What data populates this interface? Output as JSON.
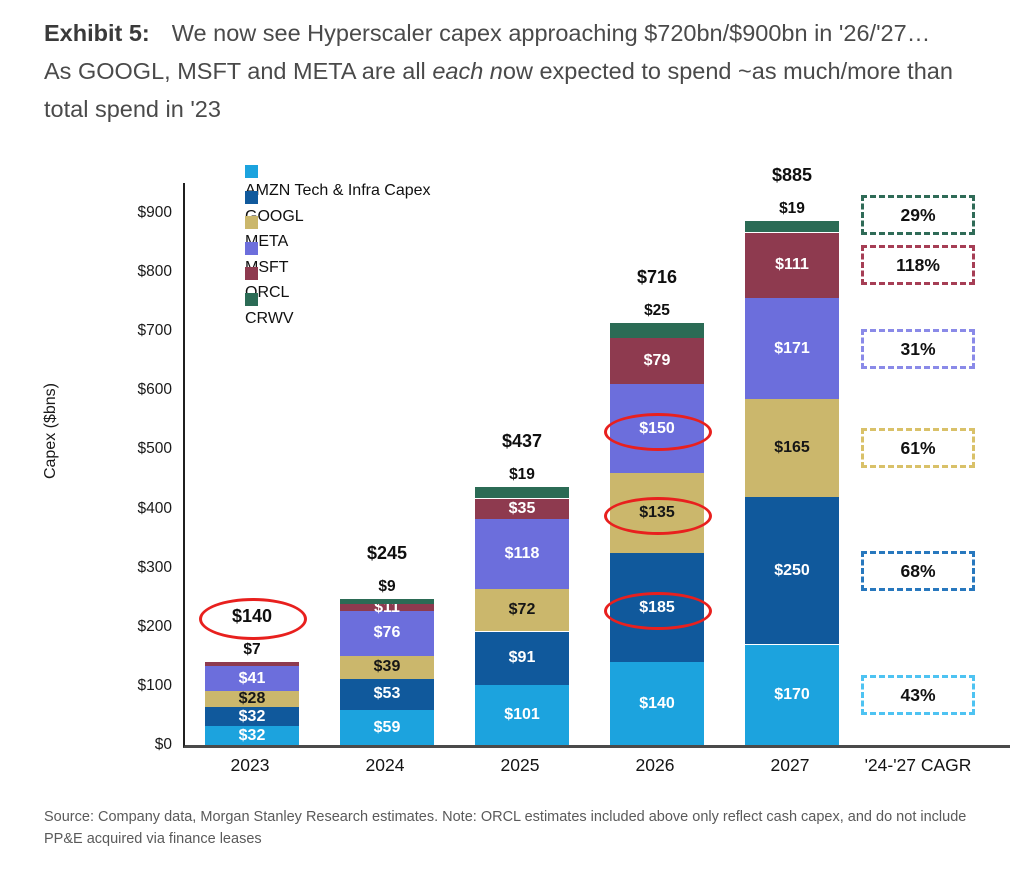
{
  "page": {
    "title": {
      "exhibit_label": "Exhibit 5:",
      "text_before_italic": "We now see Hyperscaler capex approaching $720bn/$900bn in '26/'27… As GOOGL, MSFT and META are all ",
      "italic_text": "each n",
      "text_after_italic": "ow expected to spend ~as much/more than total spend in '23"
    },
    "source_note": "Source: Company data, Morgan Stanley Research estimates. Note: ORCL estimates included above only reflect cash capex, and do not include PP&E acquired via finance leases"
  },
  "chart_data": {
    "type": "bar",
    "subtype": "stacked-bar",
    "title": "Exhibit 5: We now see Hyperscaler capex approaching $720bn/$900bn in '26/'27… As GOOGL, MSFT and META are all each now expected to spend ~as much/more than total spend in '23",
    "ylabel": "Capex ($bns)",
    "xlabel": "",
    "ylim": [
      0,
      950
    ],
    "ytick_values": [
      0,
      100,
      200,
      300,
      400,
      500,
      600,
      700,
      800,
      900
    ],
    "currency_prefix": "$",
    "grid": false,
    "legend_position": "top-left",
    "categories": [
      "2023",
      "2024",
      "2025",
      "2026",
      "2027"
    ],
    "cagr_column_header": "'24-'27 CAGR",
    "series": [
      {
        "name": "AMZN Tech & Infra Capex",
        "color": "#1CA3DE",
        "label_color": "#ffffff",
        "values": [
          32,
          59,
          101,
          140,
          170
        ],
        "cagr": "43%",
        "cagr_box_color": "#4EC3F2"
      },
      {
        "name": "GOOGL",
        "color": "#10599C",
        "label_color": "#ffffff",
        "values": [
          32,
          53,
          91,
          185,
          250
        ],
        "cagr": "68%",
        "cagr_box_color": "#2878BE"
      },
      {
        "name": "META",
        "color": "#CBB76C",
        "label_color": "#161616",
        "values": [
          28,
          39,
          72,
          135,
          165
        ],
        "cagr": "61%",
        "cagr_box_color": "#D9C169"
      },
      {
        "name": "MSFT",
        "color": "#6C6EDC",
        "label_color": "#ffffff",
        "values": [
          41,
          76,
          118,
          150,
          171
        ],
        "cagr": "31%",
        "cagr_box_color": "#8A8AE8"
      },
      {
        "name": "ORCL",
        "color": "#8E3A4F",
        "label_color": "#ffffff",
        "values": [
          7,
          11,
          35,
          79,
          111
        ],
        "cagr": "118%",
        "cagr_box_color": "#A63E55"
      },
      {
        "name": "CRWV",
        "color": "#2B6B55",
        "label_color": "#ffffff",
        "values": [
          null,
          9,
          19,
          25,
          19
        ],
        "cagr": "29%",
        "cagr_box_color": "#2F6B57"
      }
    ],
    "totals": [
      140,
      245,
      437,
      716,
      885
    ],
    "annotations": {
      "color": "#E8201E",
      "circled": [
        {
          "category": "2023",
          "target": "total",
          "label": "$140"
        },
        {
          "category": "2026",
          "target": "GOOGL",
          "label": "$185"
        },
        {
          "category": "2026",
          "target": "META",
          "label": "$135"
        },
        {
          "category": "2026",
          "target": "MSFT",
          "label": "$150"
        }
      ]
    }
  }
}
